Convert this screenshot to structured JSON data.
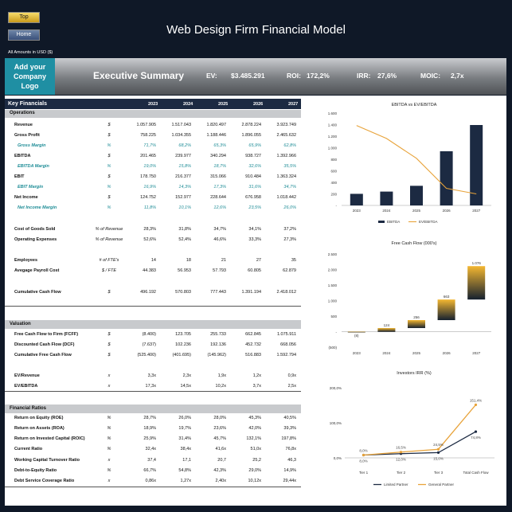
{
  "nav": {
    "top_label": "Top",
    "home_label": "Home"
  },
  "header": {
    "title": "Web Design Firm Financial Model",
    "amounts_note": "All Amounts in  USD ($)"
  },
  "banner": {
    "logo_text": "Add your Company Logo",
    "section_title": "Executive Summary",
    "ev_label": "EV:",
    "ev_value": "$3.485.291",
    "roi_label": "ROI:",
    "roi_value": "172,2%",
    "irr_label": "IRR:",
    "irr_value": "27,6%",
    "moic_label": "MOIC:",
    "moic_value": "2,7x"
  },
  "key_financials": {
    "title": "Key Financials",
    "years": [
      "2023",
      "2024",
      "2025",
      "2026",
      "2027"
    ],
    "operations_title": "Operations",
    "operations": [
      {
        "label": "Revenue",
        "unit": "$",
        "sub": false,
        "values": [
          "1.057.905",
          "1.517.043",
          "1.820.497",
          "2.878.224",
          "3.923.749"
        ]
      },
      {
        "label": "Gross Profit",
        "unit": "$",
        "sub": false,
        "values": [
          "758.225",
          "1.034.355",
          "1.188.446",
          "1.896.055",
          "2.465.632"
        ]
      },
      {
        "label": "Gross Margin",
        "unit": "%",
        "sub": true,
        "values": [
          "71,7%",
          "68,2%",
          "65,3%",
          "65,9%",
          "62,8%"
        ]
      },
      {
        "label": "EBITDA",
        "unit": "$",
        "sub": false,
        "values": [
          "201.465",
          "239.977",
          "340.294",
          "938.727",
          "1.392.966"
        ]
      },
      {
        "label": "EBITDA Margin",
        "unit": "%",
        "sub": true,
        "values": [
          "19,0%",
          "15,8%",
          "18,7%",
          "32,6%",
          "35,5%"
        ]
      },
      {
        "label": "EBIT",
        "unit": "$",
        "sub": false,
        "values": [
          "178.750",
          "216.377",
          "315.066",
          "910.484",
          "1.363.324"
        ]
      },
      {
        "label": "EBIT Margin",
        "unit": "%",
        "sub": true,
        "values": [
          "16,9%",
          "14,3%",
          "17,3%",
          "31,6%",
          "34,7%"
        ]
      },
      {
        "label": "Net Income",
        "unit": "$",
        "sub": false,
        "values": [
          "124.752",
          "152.977",
          "228.644",
          "676.958",
          "1.018.442"
        ]
      },
      {
        "label": "Net Income Margin",
        "unit": "%",
        "sub": true,
        "values": [
          "11,8%",
          "10,1%",
          "12,6%",
          "23,5%",
          "26,0%"
        ]
      }
    ],
    "cost_rows": [
      {
        "label": "Cost of Goods Sold",
        "unit": "% of Revenue",
        "values": [
          "28,3%",
          "31,8%",
          "34,7%",
          "34,1%",
          "37,2%"
        ]
      },
      {
        "label": "Operating Expenses",
        "unit": "% of Revenue",
        "values": [
          "52,6%",
          "52,4%",
          "46,6%",
          "33,3%",
          "27,3%"
        ]
      }
    ],
    "people_rows": [
      {
        "label": "Employees",
        "unit": "# of FTE's",
        "values": [
          "14",
          "18",
          "21",
          "27",
          "35"
        ]
      },
      {
        "label": "Avegage Payroll Cost",
        "unit": "$  / FTE",
        "values": [
          "44.383",
          "56.953",
          "57.793",
          "60.805",
          "62.879"
        ]
      }
    ],
    "cash_row": {
      "label": "Cumulative Cash Flow",
      "unit": "$",
      "values": [
        "496.192",
        "570.803",
        "777.443",
        "1.391.194",
        "2.418.012"
      ]
    }
  },
  "valuation": {
    "title": "Valuation",
    "rows": [
      {
        "label": "Free Cash Flow to Firm (FCFF)",
        "unit": "$",
        "values": [
          "(8.400)",
          "123.705",
          "255.733",
          "662.845",
          "1.075.911"
        ]
      },
      {
        "label": "Discounted Cash Flow (DCF)",
        "unit": "$",
        "values": [
          "(7.637)",
          "102.236",
          "192.136",
          "452.732",
          "668.056"
        ]
      },
      {
        "label": "Cumulative Free Cash Flow",
        "unit": "$",
        "values": [
          "(525.400)",
          "(401.695)",
          "(145.962)",
          "516.883",
          "1.592.794"
        ]
      },
      {
        "label": "EV/Revenue",
        "unit": "x",
        "values": [
          "3,3x",
          "2,3x",
          "1,9x",
          "1,2x",
          "0,9x"
        ]
      },
      {
        "label": "EV/EBITDA",
        "unit": "x",
        "values": [
          "17,3x",
          "14,5x",
          "10,2x",
          "3,7x",
          "2,5x"
        ]
      }
    ]
  },
  "ratios": {
    "title": "Financial Ratios",
    "rows": [
      {
        "label": "Return on Equity (ROE)",
        "unit": "%",
        "values": [
          "28,7%",
          "26,0%",
          "28,0%",
          "45,3%",
          "40,5%"
        ]
      },
      {
        "label": "Return on Assets (ROA)",
        "unit": "%",
        "values": [
          "18,9%",
          "19,7%",
          "23,6%",
          "42,0%",
          "39,3%"
        ]
      },
      {
        "label": "Return on Invested Capital (ROIC)",
        "unit": "%",
        "values": [
          "25,9%",
          "31,4%",
          "45,7%",
          "132,1%",
          "197,8%"
        ]
      },
      {
        "label": "Current Ratio",
        "unit": "%",
        "values": [
          "32,4x",
          "38,4x",
          "41,6x",
          "51,0x",
          "76,8x"
        ]
      },
      {
        "label": "Working Capital Turnover Ratio",
        "unit": "x",
        "values": [
          "37,4",
          "17,1",
          "20,7",
          "25,2",
          "46,3"
        ]
      },
      {
        "label": "Debt-to-Equity Ratio",
        "unit": "%",
        "values": [
          "66,7%",
          "54,8%",
          "42,3%",
          "29,0%",
          "14,9%"
        ]
      },
      {
        "label": "Debt Service Coverage Ratio",
        "unit": "x",
        "values": [
          "0,86x",
          "1,27x",
          "2,40x",
          "10,12x",
          "29,44x"
        ]
      }
    ]
  },
  "colors": {
    "navy": "#1c2a42",
    "gold": "#e8a33a",
    "teal": "#1d8c96",
    "banner_teal": "#1f8fa3"
  },
  "chart_data": [
    {
      "type": "bar",
      "title": "EBITDA  vs EV/EBITDA",
      "categories": [
        "2023",
        "2024",
        "2025",
        "2026",
        "2027"
      ],
      "ylim": [
        0,
        1600
      ],
      "yticks": [
        "1.600",
        "1.400",
        "1.200",
        "1.000",
        "800",
        "600",
        "400",
        "200",
        "-"
      ],
      "series": [
        {
          "name": "EBITDA",
          "type": "bar",
          "values": [
            201,
            240,
            340,
            939,
            1393
          ]
        },
        {
          "name": "EV/EBITDA",
          "type": "line",
          "values": [
            17.3,
            14.5,
            10.2,
            3.7,
            2.5
          ]
        }
      ],
      "legend": "bottom"
    },
    {
      "type": "bar",
      "title": "Free Cash Flow (000's)",
      "categories": [
        "2023",
        "2024",
        "2025",
        "2026",
        "2027"
      ],
      "ylim": [
        -500,
        2500
      ],
      "yticks": [
        "2.500",
        "2.000",
        "1.500",
        "1.000",
        "500",
        "-",
        "(500)"
      ],
      "base": [
        0,
        -8,
        116,
        371,
        1034
      ],
      "values": [
        -8,
        124,
        256,
        663,
        1076
      ],
      "labels": [
        "(8)",
        "124",
        "256",
        "663",
        "1.076"
      ]
    },
    {
      "type": "line",
      "title": "Investors IRR (%)",
      "categories": [
        "Tier 1",
        "Tier 2",
        "Tier 3",
        "Total Cash Flow"
      ],
      "ylim": [
        0,
        200
      ],
      "yticks": [
        "200,0%",
        "100,0%",
        "0,0%"
      ],
      "series": [
        {
          "name": "Limited Partner",
          "values": [
            8.0,
            12.0,
            15.0,
            74.8
          ],
          "labels": [
            "8,0%",
            "12,0%",
            "15,0%",
            "74,8%"
          ]
        },
        {
          "name": "General Partner",
          "values": [
            8.0,
            16.5,
            24.5,
            151.4
          ],
          "labels": [
            "8,0%",
            "16,5%",
            "24,5%",
            "151,4%"
          ]
        }
      ],
      "legend": "bottom"
    }
  ]
}
